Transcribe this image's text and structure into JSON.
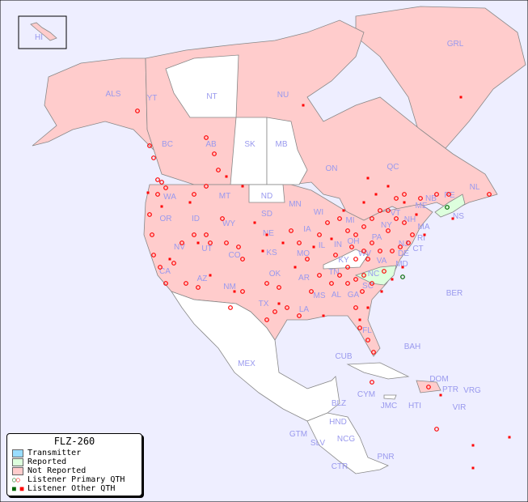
{
  "legend": {
    "title": "FLZ-260",
    "items": [
      {
        "label": "Transmitter",
        "color": "#99ddff"
      },
      {
        "label": "Reported",
        "color": "#ddffdd"
      },
      {
        "label": "Not Reported",
        "color": "#ffcccc"
      },
      {
        "label": "Listener Primary QTH",
        "marker": "circle",
        "colors": [
          "#006600",
          "#ff0000"
        ]
      },
      {
        "label": "Listener Other QTH",
        "marker": "square",
        "colors": [
          "#006600",
          "#ff0000"
        ]
      }
    ]
  },
  "colors": {
    "ocean": "#eeeeff",
    "not_reported": "#ffcccc",
    "reported": "#ddffdd",
    "no_data": "#ffffff",
    "label": "#9999ee",
    "listener": "#ff0000"
  },
  "regions": {
    "HI": "HI",
    "ALS": "ALS",
    "YT": "YT",
    "NT": "NT",
    "NU": "NU",
    "GRL": "GRL",
    "BC": "BC",
    "AB": "AB",
    "SK": "SK",
    "MB": "MB",
    "ON": "ON",
    "QC": "QC",
    "NL": "NL",
    "PE": "PE",
    "NB": "NB",
    "NS": "NS",
    "ME": "ME",
    "VT": "VT",
    "NH": "NH",
    "MA": "MA",
    "NY": "NY",
    "RI": "RI",
    "CT": "CT",
    "PA": "PA",
    "NJ": "NJ",
    "DE": "DE",
    "MD": "MD",
    "WA": "WA",
    "OR": "OR",
    "ID": "ID",
    "MT": "MT",
    "ND": "ND",
    "MN": "MN",
    "WI": "WI",
    "MI": "MI",
    "SD": "SD",
    "WY": "WY",
    "NE": "NE",
    "IA": "IA",
    "IL": "IL",
    "IN": "IN",
    "OH": "OH",
    "NV": "NV",
    "UT": "UT",
    "CO": "CO",
    "KS": "KS",
    "MO": "MO",
    "KY": "KY",
    "WV": "WV",
    "VA": "VA",
    "CA": "CA",
    "AZ": "AZ",
    "NM": "NM",
    "OK": "OK",
    "AR": "AR",
    "TN": "TN",
    "NC": "NC",
    "SC": "SC",
    "MS": "MS",
    "AL": "AL",
    "GA": "GA",
    "TX": "TX",
    "LA": "LA",
    "FL": "FL",
    "BER": "BER",
    "MEX": "MEX",
    "CUB": "CUB",
    "BAH": "BAH",
    "DOM": "DOM",
    "PTR": "PTR",
    "VRG": "VRG",
    "CYM": "CYM",
    "JMC": "JMC",
    "HTI": "HTI",
    "VIR": "VIR",
    "BLZ": "BLZ",
    "HND": "HND",
    "GTM": "GTM",
    "SLV": "SLV",
    "NCG": "NCG",
    "CTR": "CTR",
    "PNR": "PNR"
  }
}
